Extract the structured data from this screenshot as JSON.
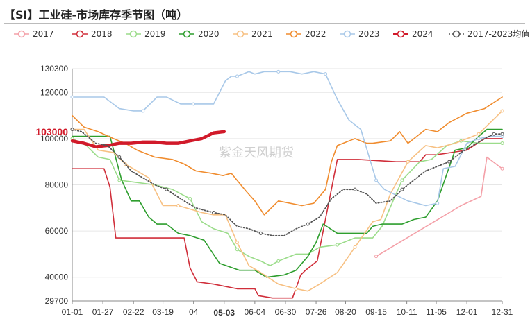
{
  "title": "【SI】工业硅-市场库存季节图（吨）",
  "watermark": "紫金天风期货",
  "chart_data": {
    "type": "line",
    "ylim": [
      29700,
      130300
    ],
    "y_ticks": [
      29700,
      40000,
      60000,
      80000,
      100000,
      120000,
      130300
    ],
    "y_tick_labels": [
      "29700",
      "40000",
      "60000",
      "80000",
      "100000",
      "120000",
      "130300"
    ],
    "x_ticks": [
      "01-01",
      "01-27",
      "02-22",
      "03-19",
      "04",
      "05-03",
      "06-04",
      "06-30",
      "07-26",
      "08-20",
      "09-15",
      "10-11",
      "11-05",
      "12-01",
      "12-31"
    ],
    "x_tick_pos": [
      0,
      26,
      52,
      77,
      103,
      129,
      155,
      181,
      207,
      232,
      258,
      284,
      309,
      335,
      365
    ],
    "highlight_x": "05-03",
    "highlight_y": "103000",
    "highlight_y_value": 103000,
    "legend_position": "top",
    "series": [
      {
        "name": "2017",
        "color": "#f4a0a8",
        "marker": true,
        "width": 1.6,
        "dotted": false,
        "x": [
          258,
          330,
          347,
          352,
          365
        ],
        "y": [
          49000,
          71000,
          75000,
          92000,
          87000
        ]
      },
      {
        "name": "2018",
        "color": "#d02e3a",
        "marker": false,
        "width": 1.6,
        "dotted": false,
        "x": [
          0,
          22,
          27,
          32,
          37,
          55,
          70,
          85,
          95,
          100,
          106,
          120,
          140,
          155,
          158,
          170,
          179,
          187,
          194,
          198,
          208,
          225,
          243,
          275,
          295,
          300,
          309,
          335,
          350,
          365
        ],
        "y": [
          87000,
          87000,
          87000,
          79000,
          57000,
          57000,
          57000,
          57000,
          57000,
          44000,
          38000,
          37000,
          35000,
          35000,
          32000,
          31000,
          31000,
          31000,
          41000,
          43000,
          47000,
          91000,
          91000,
          90000,
          90000,
          93000,
          93000,
          95000,
          100000,
          100000
        ]
      },
      {
        "name": "2019",
        "color": "#9bdc8a",
        "marker": true,
        "width": 1.6,
        "dotted": false,
        "x": [
          0,
          12,
          22,
          32,
          40,
          55,
          70,
          85,
          100,
          110,
          120,
          132,
          140,
          150,
          160,
          168,
          175,
          190,
          200,
          210,
          225,
          240,
          255,
          263,
          280,
          295,
          305,
          318,
          330,
          345,
          356,
          365
        ],
        "y": [
          100000,
          97000,
          92000,
          91000,
          82000,
          81000,
          80000,
          78000,
          74000,
          64000,
          61000,
          59000,
          52000,
          49000,
          47000,
          45000,
          47000,
          50000,
          50000,
          53000,
          54000,
          57000,
          57000,
          62000,
          82000,
          90000,
          91000,
          97000,
          99000,
          98000,
          98000,
          98000
        ]
      },
      {
        "name": "2020",
        "color": "#2e9e2e",
        "marker": false,
        "width": 1.6,
        "dotted": false,
        "x": [
          0,
          12,
          22,
          32,
          42,
          50,
          57,
          65,
          72,
          80,
          90,
          100,
          112,
          125,
          142,
          155,
          165,
          180,
          190,
          200,
          207,
          213,
          225,
          235,
          240,
          250,
          255,
          263,
          280,
          290,
          300,
          310,
          325,
          335,
          345,
          352,
          365
        ],
        "y": [
          101000,
          101000,
          101000,
          101000,
          82000,
          73000,
          73000,
          66000,
          63000,
          63000,
          59000,
          58000,
          56000,
          46000,
          43000,
          43000,
          40000,
          41000,
          43000,
          49000,
          55000,
          63000,
          59000,
          59000,
          59000,
          59000,
          62000,
          63000,
          63000,
          65000,
          66000,
          73000,
          95000,
          96000,
          101000,
          104000,
          104000
        ]
      },
      {
        "name": "2021",
        "color": "#f7c082",
        "marker": true,
        "width": 1.6,
        "dotted": false,
        "x": [
          0,
          10,
          22,
          35,
          45,
          55,
          65,
          77,
          90,
          110,
          120,
          130,
          140,
          150,
          160,
          175,
          190,
          200,
          210,
          225,
          240,
          255,
          262,
          270,
          285,
          300,
          310,
          325,
          345,
          355,
          365
        ],
        "y": [
          104000,
          104000,
          95000,
          94000,
          89000,
          86000,
          83000,
          71000,
          71000,
          68000,
          67000,
          67000,
          55000,
          45000,
          42000,
          37000,
          35000,
          34000,
          37000,
          42000,
          53000,
          64000,
          65000,
          76000,
          90000,
          97000,
          96000,
          98000,
          102000,
          107000,
          112000
        ]
      },
      {
        "name": "2022",
        "color": "#f08c2e",
        "marker": false,
        "width": 1.6,
        "dotted": false,
        "x": [
          0,
          10,
          22,
          35,
          45,
          55,
          70,
          85,
          95,
          105,
          118,
          128,
          135,
          148,
          155,
          163,
          175,
          195,
          205,
          215,
          220,
          225,
          240,
          250,
          255,
          270,
          278,
          285,
          300,
          310,
          320,
          335,
          350,
          365
        ],
        "y": [
          110000,
          105000,
          103000,
          100000,
          98000,
          95000,
          92000,
          91000,
          89000,
          86000,
          85000,
          84000,
          85000,
          77000,
          73000,
          67000,
          73000,
          71000,
          72000,
          78000,
          90000,
          97000,
          100000,
          98000,
          98000,
          99000,
          103000,
          98000,
          104000,
          103000,
          107000,
          111000,
          113000,
          118000
        ]
      },
      {
        "name": "2023",
        "color": "#a8c8e8",
        "marker": true,
        "width": 1.6,
        "dotted": false,
        "x": [
          0,
          27,
          40,
          52,
          60,
          72,
          80,
          92,
          103,
          120,
          130,
          135,
          140,
          150,
          155,
          163,
          175,
          185,
          195,
          205,
          215,
          225,
          235,
          245,
          258,
          265,
          285,
          300,
          310,
          315,
          325,
          335,
          345,
          355,
          365
        ],
        "y": [
          118000,
          118000,
          113000,
          112000,
          112000,
          118000,
          118000,
          115000,
          115000,
          115000,
          125000,
          127000,
          127000,
          129000,
          128000,
          129000,
          129000,
          129000,
          128000,
          129000,
          128000,
          117000,
          108000,
          104000,
          82000,
          78000,
          73000,
          71000,
          72000,
          87000,
          88000,
          98000,
          100000,
          101000,
          101000
        ]
      },
      {
        "name": "2024",
        "color": "#d11a2a",
        "marker": false,
        "width": 4.5,
        "dotted": false,
        "x": [
          0,
          10,
          20,
          30,
          40,
          50,
          60,
          70,
          80,
          90,
          100,
          110,
          120,
          129
        ],
        "y": [
          99000,
          98000,
          96500,
          97000,
          98000,
          98000,
          98500,
          98500,
          98000,
          98000,
          99000,
          100000,
          102500,
          103000
        ]
      },
      {
        "name": "2017-2023均值",
        "color": "#555555",
        "marker": true,
        "width": 1.8,
        "dotted": true,
        "x": [
          0,
          8,
          20,
          30,
          40,
          50,
          60,
          70,
          80,
          95,
          105,
          112,
          120,
          130,
          140,
          150,
          160,
          170,
          180,
          190,
          200,
          210,
          220,
          230,
          240,
          250,
          258,
          270,
          280,
          290,
          300,
          310,
          320,
          330,
          340,
          350,
          358,
          365
        ],
        "y": [
          104000,
          103000,
          98000,
          97000,
          92000,
          86000,
          83000,
          80000,
          78000,
          73000,
          70000,
          69000,
          68000,
          67000,
          62000,
          61000,
          59000,
          58000,
          58000,
          61000,
          63000,
          66000,
          74000,
          78000,
          78000,
          76000,
          72000,
          73000,
          78000,
          82000,
          86000,
          88000,
          90000,
          94000,
          97000,
          100000,
          102000,
          102000
        ]
      }
    ]
  }
}
